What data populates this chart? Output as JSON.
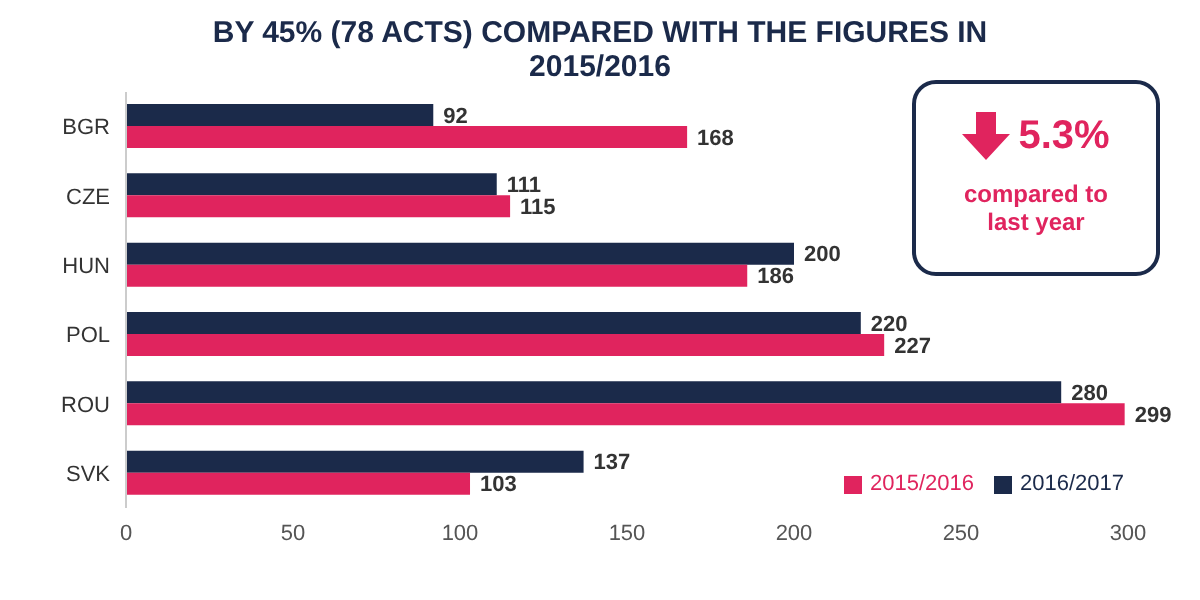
{
  "chart_data": {
    "type": "bar",
    "orientation": "horizontal",
    "title": "BY 45% (78 ACTS) COMPARED WITH THE FIGURES IN 2015/2016",
    "categories": [
      "BGR",
      "CZE",
      "HUN",
      "POL",
      "ROU",
      "SVK"
    ],
    "series": [
      {
        "name": "2016/2017",
        "color": "#1b2a4a",
        "values": [
          92,
          111,
          200,
          220,
          280,
          137
        ]
      },
      {
        "name": "2015/2016",
        "color": "#e0245e",
        "values": [
          168,
          115,
          186,
          227,
          299,
          103
        ]
      }
    ],
    "xlim": [
      0,
      300
    ],
    "xticks": [
      0,
      50,
      100,
      150,
      200,
      250,
      300
    ],
    "data_labels": true,
    "grid": false,
    "legend": "bottom right",
    "annotations": [
      "5.3%",
      "compared to last year"
    ]
  }
}
